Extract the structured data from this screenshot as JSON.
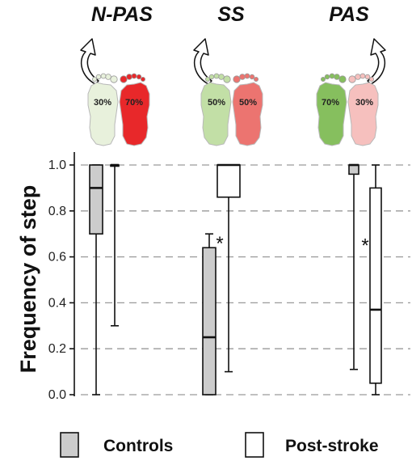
{
  "chart_data": {
    "type": "box",
    "ylabel": "Frequency of step",
    "ylim": [
      0,
      1.05
    ],
    "yticks": [
      "0.0",
      "0.2",
      "0.4",
      "0.6",
      "0.8",
      "1.0"
    ],
    "grid": "horizontal-dashed",
    "conditions": [
      {
        "title": "N-PAS",
        "left_foot_pct": "30%",
        "right_foot_pct": "70%",
        "left_foot_color": "#e8f1dc",
        "right_foot_color": "#e8282a",
        "arrow_side": "left"
      },
      {
        "title": "SS",
        "left_foot_pct": "50%",
        "right_foot_pct": "50%",
        "left_foot_color": "#c2dfa6",
        "right_foot_color": "#ec7470",
        "arrow_side": "left"
      },
      {
        "title": "PAS",
        "left_foot_pct": "70%",
        "right_foot_pct": "30%",
        "left_foot_color": "#86bf5e",
        "right_foot_color": "#f6c0be",
        "arrow_side": "right"
      }
    ],
    "series": [
      {
        "name": "Controls",
        "color": "#cccccc",
        "boxes": [
          {
            "condition": "N-PAS",
            "min": 0.0,
            "q1": 0.7,
            "median": 0.9,
            "q3": 1.0,
            "max": 1.0
          },
          {
            "condition": "SS",
            "min": 0.0,
            "q1": 0.0,
            "median": 0.25,
            "q3": 0.64,
            "max": 0.7
          },
          {
            "condition": "PAS",
            "min": 0.11,
            "q1": 0.96,
            "median": 1.0,
            "q3": 1.0,
            "max": 1.0
          }
        ]
      },
      {
        "name": "Post-stroke",
        "color": "#ffffff",
        "boxes": [
          {
            "condition": "N-PAS",
            "min": 0.3,
            "q1": 1.0,
            "median": 1.0,
            "q3": 1.0,
            "max": 1.0
          },
          {
            "condition": "SS",
            "min": 0.1,
            "q1": 0.86,
            "median": 1.0,
            "q3": 1.0,
            "max": 1.0
          },
          {
            "condition": "PAS",
            "min": 0.0,
            "q1": 0.05,
            "median": 0.37,
            "q3": 0.9,
            "max": 1.0
          }
        ]
      }
    ],
    "annotations": [
      {
        "text": "*",
        "condition": "SS",
        "y": 0.68
      },
      {
        "text": "*",
        "condition": "PAS",
        "y": 0.67
      }
    ],
    "legend": {
      "placement": "bottom",
      "items": [
        {
          "label": "Controls",
          "color": "#cccccc"
        },
        {
          "label": "Post-stroke",
          "color": "#ffffff"
        }
      ]
    }
  }
}
